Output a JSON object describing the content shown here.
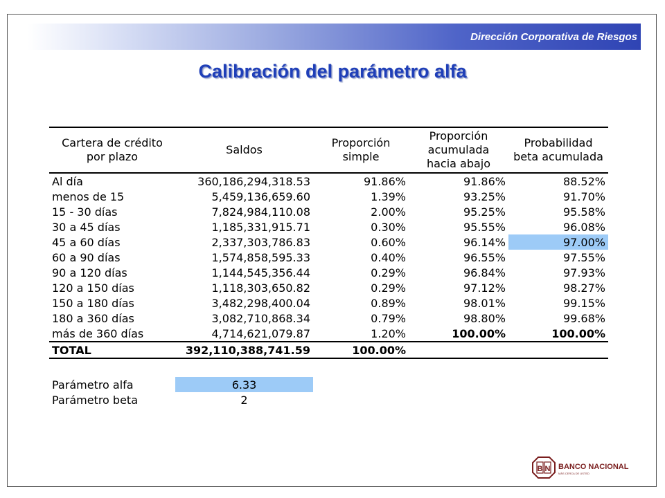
{
  "header": {
    "org": "Dirección Corporativa de Riesgos"
  },
  "title": "Calibración del parámetro alfa",
  "table": {
    "columns": [
      "Cartera de crédito por plazo",
      "Saldos",
      "Proporción simple",
      "Proporción acumulada hacia abajo",
      "Probabilidad beta acumulada"
    ],
    "rows": [
      {
        "plazo": "Al día",
        "saldo": "360,186,294,318.53",
        "simple": "91.86%",
        "acumulada": "91.86%",
        "beta": "88.52%"
      },
      {
        "plazo": "menos de 15",
        "saldo": "5,459,136,659.60",
        "simple": "1.39%",
        "acumulada": "93.25%",
        "beta": "91.70%"
      },
      {
        "plazo": "15 - 30 días",
        "saldo": "7,824,984,110.08",
        "simple": "2.00%",
        "acumulada": "95.25%",
        "beta": "95.58%"
      },
      {
        "plazo": "30 a 45 días",
        "saldo": "1,185,331,915.71",
        "simple": "0.30%",
        "acumulada": "95.55%",
        "beta": "96.08%"
      },
      {
        "plazo": "45 a 60 días",
        "saldo": "2,337,303,786.83",
        "simple": "0.60%",
        "acumulada": "96.14%",
        "beta": "97.00%"
      },
      {
        "plazo": "60 a 90 días",
        "saldo": "1,574,858,595.33",
        "simple": "0.40%",
        "acumulada": "96.55%",
        "beta": "97.55%"
      },
      {
        "plazo": "90 a 120 días",
        "saldo": "1,144,545,356.44",
        "simple": "0.29%",
        "acumulada": "96.84%",
        "beta": "97.93%"
      },
      {
        "plazo": "120 a 150 días",
        "saldo": "1,118,303,650.82",
        "simple": "0.29%",
        "acumulada": "97.12%",
        "beta": "98.27%"
      },
      {
        "plazo": "150 a 180 días",
        "saldo": "3,482,298,400.04",
        "simple": "0.89%",
        "acumulada": "98.01%",
        "beta": "99.15%"
      },
      {
        "plazo": "180 a 360 días",
        "saldo": "3,082,710,868.34",
        "simple": "0.79%",
        "acumulada": "98.80%",
        "beta": "99.68%"
      },
      {
        "plazo": "más de 360 días",
        "saldo": "4,714,621,079.87",
        "simple": "1.20%",
        "acumulada": "100.00%",
        "beta": "100.00%"
      }
    ],
    "total": {
      "label": "TOTAL",
      "saldo": "392,110,388,741.59",
      "simple": "100.00%"
    }
  },
  "params": {
    "alfa_label": "Parámetro alfa",
    "alfa_value": "6.33",
    "beta_label": "Parámetro beta",
    "beta_value": "2"
  },
  "logo": {
    "letters": "BN",
    "name": "BANCO NACIONAL",
    "tagline": "MÁS CERCA DE USTED"
  },
  "colors": {
    "title": "#1f3fb8",
    "highlight": "#9dcbf7",
    "logo": "#7a1e1e"
  }
}
